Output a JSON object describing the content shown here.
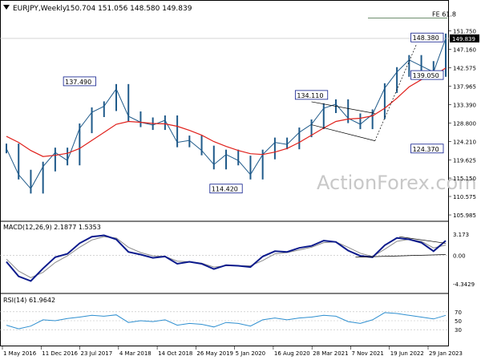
{
  "colors": {
    "price": "#1f5a8a",
    "ma": "#e0201b",
    "macd": "#0b1a8c",
    "signal": "#8a8a8a",
    "rsi": "#2e8fd0",
    "trend": "#000000",
    "fe_line": "#6e8e6e",
    "last_price_box": "#000000",
    "grid": "#bbbbbb",
    "watermark": "#c8c8c8"
  },
  "header": {
    "symbol": "EURJPY,Weekly",
    "ohlc": "150.704 151.056 148.580 149.839",
    "watermark": "ActionForex.com"
  },
  "chart_data": [
    {
      "type": "line",
      "title": "EURJPY,Weekly",
      "x": [
        "1 May 2016",
        "5 Jul 2016",
        "12 Sep 2016",
        "21 Nov 2016",
        "6 Feb 2017",
        "17 Apr 2017",
        "26 Jun 2017",
        "4 Sep 2017",
        "13 Nov 2017",
        "29 Jan 2018",
        "9 Apr 2018",
        "18 Jun 2018",
        "27 Aug 2018",
        "5 Nov 2018",
        "14 Jan 2019",
        "25 Mar 2019",
        "3 Jun 2019",
        "12 Aug 2019",
        "21 Oct 2019",
        "30 Dec 2019",
        "9 Mar 2020",
        "18 May 2020",
        "27 Jul 2020",
        "5 Oct 2020",
        "14 Dec 2020",
        "22 Feb 2021",
        "3 May 2021",
        "12 Jul 2021",
        "20 Sep 2021",
        "29 Nov 2021",
        "7 Feb 2022",
        "18 Apr 2022",
        "27 Jun 2022",
        "5 Sep 2022",
        "14 Nov 2022",
        "23 Jan 2023",
        "27 Mar 2023"
      ],
      "x_tick_labels": [
        "1 May 2016",
        "11 Dec 2016",
        "23 Jul 2017",
        "4 Mar 2018",
        "14 Oct 2018",
        "26 May 2019",
        "5 Jan 2020",
        "16 Aug 2020",
        "28 Mar 2021",
        "7 Nov 2021",
        "19 Jun 2022",
        "29 Jan 2023"
      ],
      "series": [
        {
          "key": "close",
          "values": [
            122.5,
            116.0,
            112.5,
            118.0,
            121.5,
            119.5,
            127.5,
            131.5,
            133.0,
            137.3,
            130.5,
            129.0,
            128.3,
            129.5,
            124.0,
            124.5,
            122.0,
            118.5,
            121.0,
            119.5,
            116.0,
            121.0,
            124.0,
            123.5,
            126.5,
            128.5,
            132.5,
            133.5,
            130.0,
            128.5,
            131.0,
            137.5,
            141.5,
            144.5,
            143.0,
            141.5,
            149.839
          ]
        },
        {
          "key": "ma",
          "values": [
            125.5,
            124.0,
            122.0,
            120.5,
            120.8,
            121.3,
            122.5,
            124.5,
            126.5,
            128.5,
            129.2,
            129.0,
            128.7,
            128.6,
            128.0,
            127.0,
            125.8,
            124.2,
            123.0,
            122.0,
            121.2,
            121.0,
            121.6,
            122.5,
            124.0,
            125.8,
            127.6,
            129.2,
            129.8,
            130.0,
            130.6,
            132.5,
            135.0,
            137.8,
            139.6,
            140.5,
            142.5
          ]
        }
      ],
      "annotations": [
        {
          "text": "137.490",
          "x": "26 Jun 2017",
          "y": 137.49
        },
        {
          "text": "114.420",
          "x": "21 Oct 2019",
          "y": 114.42
        },
        {
          "text": "134.110",
          "x": "22 Feb 2021",
          "y": 134.11
        },
        {
          "text": "124.370",
          "x": "7 Mar 2022",
          "y": 124.37
        },
        {
          "text": "148.380",
          "x": "24 Oct 2022",
          "y": 148.38
        },
        {
          "text": "139.050",
          "x": "23 Jan 2023",
          "y": 139.05
        },
        {
          "text": "FE 61.8",
          "x": "27 Mar 2023",
          "y": 154.9
        }
      ],
      "last_value_label": "149.839",
      "y_ticks": [
        105.985,
        110.575,
        115.15,
        119.625,
        124.21,
        128.8,
        133.39,
        137.965,
        142.575,
        147.16,
        151.75
      ],
      "y_tick_labels": [
        "105.985",
        "110.575",
        "115.150",
        "119.625",
        "124.210",
        "128.800",
        "133.390",
        "137.965",
        "142.575",
        "147.160",
        "151.750"
      ],
      "ylim": [
        105.2,
        155.8
      ],
      "xlabel": "",
      "ylabel": "",
      "grid": false
    },
    {
      "type": "line",
      "title": "MACD(12,26,9) 2.1877 1.5353",
      "x": [
        "1 May 2016",
        "5 Jul 2016",
        "12 Sep 2016",
        "21 Nov 2016",
        "6 Feb 2017",
        "17 Apr 2017",
        "26 Jun 2017",
        "4 Sep 2017",
        "13 Nov 2017",
        "29 Jan 2018",
        "9 Apr 2018",
        "18 Jun 2018",
        "27 Aug 2018",
        "5 Nov 2018",
        "14 Jan 2019",
        "25 Mar 2019",
        "3 Jun 2019",
        "12 Aug 2019",
        "21 Oct 2019",
        "30 Dec 2019",
        "9 Mar 2020",
        "18 May 2020",
        "27 Jul 2020",
        "5 Oct 2020",
        "14 Dec 2020",
        "22 Feb 2021",
        "3 May 2021",
        "12 Jul 2021",
        "20 Sep 2021",
        "29 Nov 2021",
        "7 Feb 2022",
        "18 Apr 2022",
        "27 Jun 2022",
        "5 Sep 2022",
        "14 Nov 2022",
        "23 Jan 2023",
        "27 Mar 2023"
      ],
      "series": [
        {
          "key": "macd",
          "values": [
            -1.0,
            -3.2,
            -3.9,
            -2.0,
            -0.3,
            0.2,
            1.8,
            2.8,
            3.0,
            2.4,
            0.5,
            0.1,
            -0.4,
            -0.2,
            -1.3,
            -1.0,
            -1.3,
            -2.1,
            -1.5,
            -1.6,
            -1.8,
            -0.2,
            0.6,
            0.5,
            1.1,
            1.4,
            2.2,
            2.0,
            0.7,
            -0.1,
            -0.3,
            1.5,
            2.6,
            2.4,
            1.9,
            0.6,
            2.1877
          ]
        },
        {
          "key": "signal",
          "values": [
            -0.6,
            -2.4,
            -3.4,
            -2.6,
            -1.1,
            -0.1,
            1.2,
            2.3,
            2.8,
            2.6,
            1.2,
            0.4,
            -0.1,
            -0.2,
            -0.9,
            -1.0,
            -1.2,
            -1.8,
            -1.6,
            -1.6,
            -1.6,
            -0.8,
            0.2,
            0.4,
            0.8,
            1.2,
            1.9,
            2.0,
            1.2,
            0.3,
            -0.2,
            0.9,
            2.1,
            2.4,
            2.1,
            1.1,
            1.5353
          ]
        }
      ],
      "y_ticks": [
        3.173,
        0.0,
        -4.3429
      ],
      "y_tick_labels": [
        "3.173",
        "0.00",
        "-4.3429"
      ],
      "ylim": [
        -5.3,
        4.4
      ],
      "xlabel": "",
      "ylabel": ""
    },
    {
      "type": "line",
      "title": "RSI(14) 61.9642",
      "x": [
        "1 May 2016",
        "5 Jul 2016",
        "12 Sep 2016",
        "21 Nov 2016",
        "6 Feb 2017",
        "17 Apr 2017",
        "26 Jun 2017",
        "4 Sep 2017",
        "13 Nov 2017",
        "29 Jan 2018",
        "9 Apr 2018",
        "18 Jun 2018",
        "27 Aug 2018",
        "5 Nov 2018",
        "14 Jan 2019",
        "25 Mar 2019",
        "3 Jun 2019",
        "12 Aug 2019",
        "21 Oct 2019",
        "30 Dec 2019",
        "9 Mar 2020",
        "18 May 2020",
        "27 Jul 2020",
        "5 Oct 2020",
        "14 Dec 2020",
        "22 Feb 2021",
        "3 May 2021",
        "12 Jul 2021",
        "20 Sep 2021",
        "29 Nov 2021",
        "7 Feb 2022",
        "18 Apr 2022",
        "27 Jun 2022",
        "5 Sep 2022",
        "14 Nov 2022",
        "23 Jan 2023",
        "27 Mar 2023"
      ],
      "series": [
        {
          "key": "rsi",
          "values": [
            40,
            32,
            38,
            52,
            50,
            55,
            58,
            62,
            60,
            63,
            46,
            50,
            48,
            52,
            40,
            44,
            42,
            36,
            46,
            44,
            38,
            52,
            56,
            52,
            56,
            58,
            62,
            60,
            48,
            44,
            52,
            68,
            66,
            62,
            58,
            54,
            61.9642
          ]
        }
      ],
      "y_ticks": [
        70,
        50,
        30
      ],
      "y_tick_labels": [
        "70",
        "50",
        "30"
      ],
      "ylim": [
        0,
        100
      ],
      "xlabel": "",
      "ylabel": ""
    }
  ]
}
